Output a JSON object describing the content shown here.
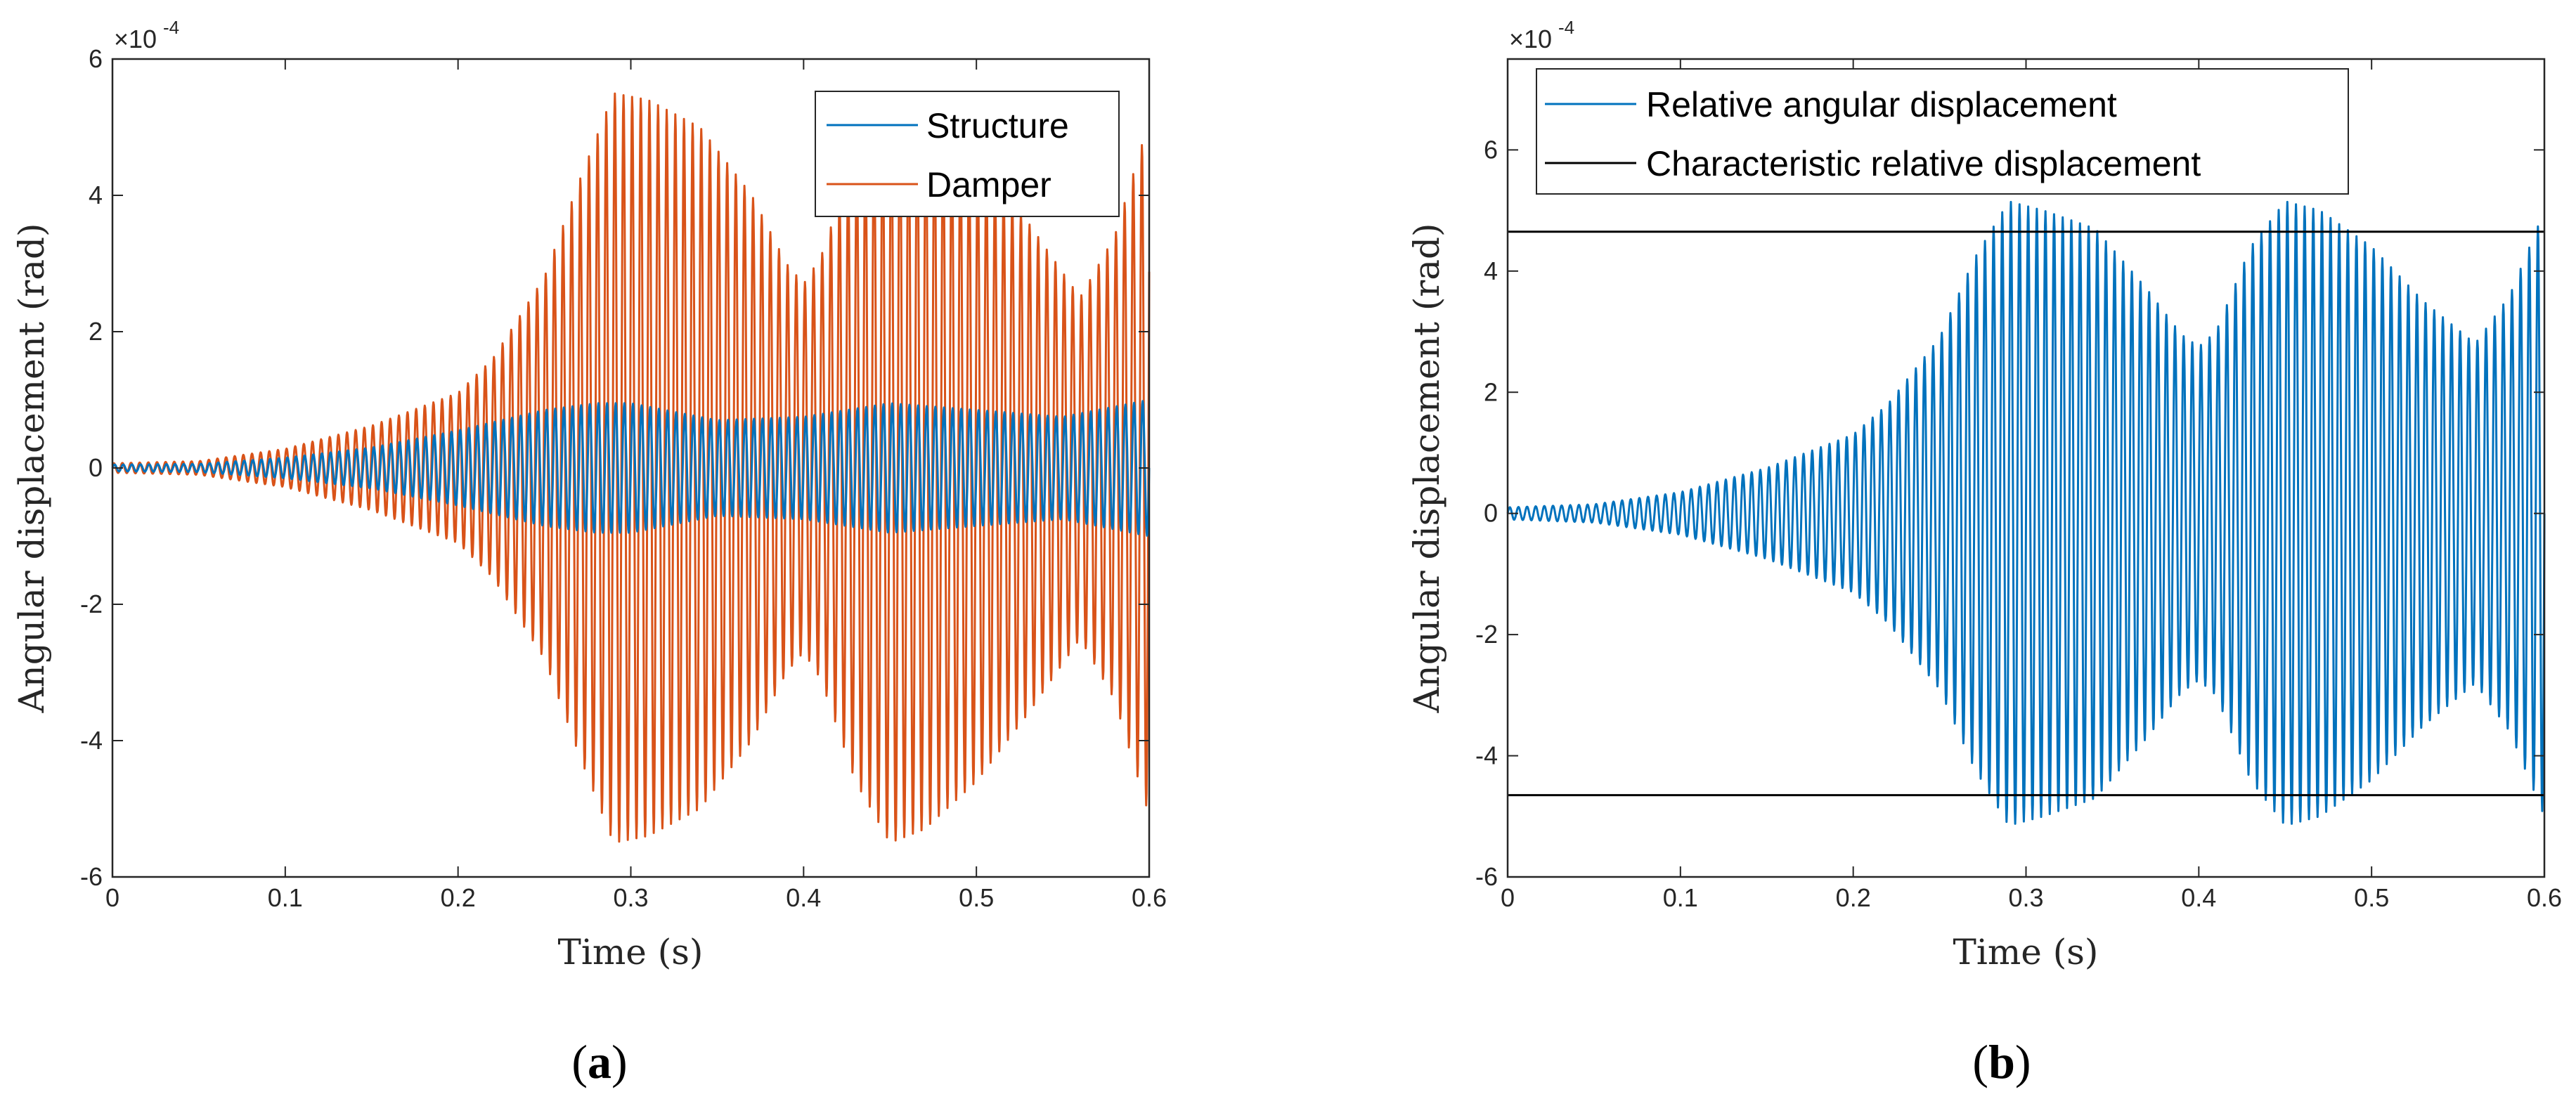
{
  "chart_data": [
    {
      "type": "line",
      "panel_label": "a",
      "caption_open": "(",
      "caption_close": ")",
      "xlabel": "Time (s)",
      "ylabel": "Angular displacement (rad)",
      "xlim": [
        0,
        0.6
      ],
      "ylim": [
        -6,
        6
      ],
      "y_exponent_base": "×10",
      "y_exponent": "-4",
      "x_ticks": [
        "0",
        "0.1",
        "0.2",
        "0.3",
        "0.4",
        "0.5",
        "0.6"
      ],
      "y_ticks": [
        "-6",
        "-4",
        "-2",
        "0",
        "2",
        "4",
        "6"
      ],
      "legend_position": "top-right",
      "series": [
        {
          "name": "Structure",
          "color": "#0072bd",
          "freq_hz": 200,
          "envelope": {
            "t": [
              0,
              0.05,
              0.1,
              0.15,
              0.2,
              0.25,
              0.28,
              0.3,
              0.35,
              0.4,
              0.45,
              0.5,
              0.55,
              0.6
            ],
            "amplitude": [
              0.05,
              0.06,
              0.15,
              0.3,
              0.55,
              0.85,
              0.95,
              0.95,
              0.7,
              0.75,
              0.95,
              0.85,
              0.75,
              1.0
            ]
          }
        },
        {
          "name": "Damper",
          "color": "#d95319",
          "freq_hz": 200,
          "envelope": {
            "t": [
              0,
              0.05,
              0.1,
              0.15,
              0.2,
              0.22,
              0.25,
              0.27,
              0.29,
              0.31,
              0.34,
              0.37,
              0.39,
              0.4,
              0.41,
              0.43,
              0.45,
              0.47,
              0.5,
              0.53,
              0.56,
              0.58,
              0.6
            ],
            "amplitude": [
              0.07,
              0.1,
              0.28,
              0.62,
              1.1,
              1.6,
              2.8,
              4.2,
              5.5,
              5.4,
              5.0,
              4.0,
              3.0,
              2.7,
              3.1,
              4.6,
              5.5,
              5.3,
              4.6,
              3.6,
              2.5,
              3.4,
              5.1
            ]
          }
        }
      ]
    },
    {
      "type": "line",
      "panel_label": "b",
      "caption_open": "(",
      "caption_close": ")",
      "xlabel": "Time (s)",
      "ylabel": "Angular displacement (rad)",
      "xlim": [
        0,
        0.6
      ],
      "ylim": [
        -6,
        7.5
      ],
      "y_exponent_base": "×10",
      "y_exponent": "-4",
      "x_ticks": [
        "0",
        "0.1",
        "0.2",
        "0.3",
        "0.4",
        "0.5",
        "0.6"
      ],
      "y_ticks": [
        "-6",
        "-4",
        "-2",
        "0",
        "2",
        "4",
        "6"
      ],
      "legend_position": "top-left",
      "series": [
        {
          "name": "Relative angular displacement",
          "color": "#0072bd",
          "freq_hz": 200,
          "envelope": {
            "t": [
              0,
              0.05,
              0.1,
              0.15,
              0.2,
              0.22,
              0.25,
              0.27,
              0.29,
              0.31,
              0.34,
              0.37,
              0.39,
              0.4,
              0.41,
              0.43,
              0.45,
              0.47,
              0.5,
              0.53,
              0.56,
              0.58,
              0.6
            ],
            "amplitude": [
              0.1,
              0.15,
              0.35,
              0.75,
              1.3,
              1.8,
              2.9,
              4.2,
              5.15,
              5.0,
              4.7,
              3.7,
              2.95,
              2.75,
              3.0,
              4.4,
              5.15,
              5.0,
              4.4,
              3.5,
              2.8,
              3.6,
              5.0
            ]
          }
        },
        {
          "name": "Characteristic relative displacement",
          "color": "#000000",
          "constant_levels": [
            4.65,
            -4.65
          ]
        }
      ]
    }
  ]
}
